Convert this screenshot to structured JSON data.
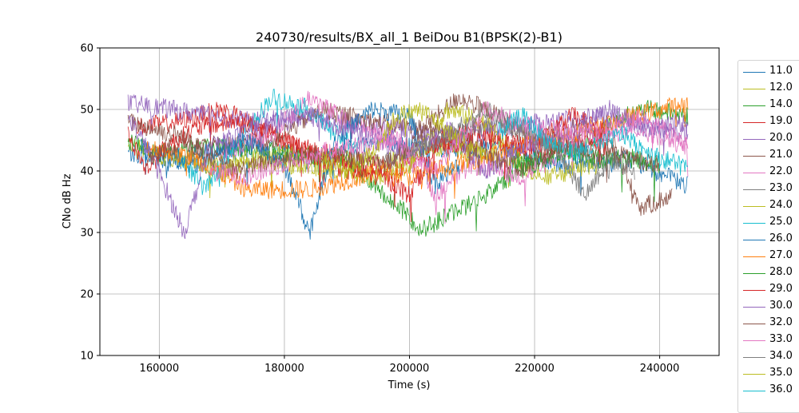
{
  "chart_data": {
    "type": "line",
    "title": "240730/results/BX_all_1 BeiDou B1(BPSK(2)-B1)",
    "xlabel": "Time (s)",
    "ylabel": "CNo dB Hz",
    "xlim": [
      150500,
      249500
    ],
    "ylim": [
      10,
      60
    ],
    "x_ticks": [
      160000,
      180000,
      200000,
      220000,
      240000
    ],
    "x_tick_labels": [
      "160000",
      "180000",
      "200000",
      "220000",
      "240000"
    ],
    "y_ticks": [
      10,
      20,
      30,
      40,
      50,
      60
    ],
    "y_tick_labels": [
      "10",
      "20",
      "30",
      "40",
      "50",
      "60"
    ],
    "grid": true,
    "legend_position": "outside-right",
    "series": [
      {
        "name": "11.0",
        "color": "#1f77b4",
        "points": [
          [
            155000,
            43
          ],
          [
            165000,
            41
          ],
          [
            175000,
            44
          ],
          [
            185000,
            42
          ],
          [
            195000,
            45
          ],
          [
            205000,
            43
          ],
          [
            215000,
            44
          ],
          [
            225000,
            41
          ],
          [
            235000,
            42
          ],
          [
            244500,
            37.5
          ]
        ]
      },
      {
        "name": "12.0",
        "color": "#bcbd22",
        "points": [
          [
            155000,
            44
          ],
          [
            162000,
            42
          ],
          [
            170000,
            40
          ],
          [
            180000,
            43
          ],
          [
            195000,
            41
          ],
          [
            205000,
            44
          ],
          [
            215000,
            42
          ],
          [
            222000,
            39
          ],
          [
            230000,
            41
          ]
        ]
      },
      {
        "name": "14.0",
        "color": "#2ca02c",
        "points": [
          [
            155000,
            45
          ],
          [
            160000,
            43
          ],
          [
            170000,
            44
          ],
          [
            190000,
            42
          ],
          [
            202000,
            30.5
          ],
          [
            212000,
            36
          ],
          [
            220000,
            42
          ],
          [
            228000,
            44
          ],
          [
            232000,
            48
          ],
          [
            238000,
            50
          ],
          [
            244500,
            49
          ]
        ]
      },
      {
        "name": "19.0",
        "color": "#d62728",
        "points": [
          [
            156000,
            47
          ],
          [
            163000,
            48
          ],
          [
            170000,
            50
          ],
          [
            176000,
            47
          ],
          [
            182000,
            44
          ],
          [
            190000,
            42
          ],
          [
            198000,
            40
          ],
          [
            205000,
            45
          ],
          [
            212000,
            47
          ],
          [
            218000,
            43
          ],
          [
            226000,
            45
          ],
          [
            232000,
            44
          ]
        ]
      },
      {
        "name": "20.0",
        "color": "#9467bd",
        "points": [
          [
            155000,
            51
          ],
          [
            162000,
            50
          ],
          [
            168000,
            49
          ],
          [
            175000,
            48
          ],
          [
            182000,
            49
          ],
          [
            190000,
            48
          ],
          [
            198000,
            47
          ],
          [
            206000,
            45
          ],
          [
            214000,
            47
          ],
          [
            222000,
            48
          ],
          [
            230000,
            49
          ],
          [
            238000,
            47
          ],
          [
            244500,
            46
          ]
        ]
      },
      {
        "name": "21.0",
        "color": "#8c564b",
        "points": [
          [
            155000,
            48
          ],
          [
            162000,
            46
          ],
          [
            170000,
            44
          ],
          [
            178000,
            45
          ],
          [
            186000,
            50
          ],
          [
            194000,
            48
          ],
          [
            202000,
            47
          ],
          [
            208000,
            52
          ],
          [
            214000,
            49
          ],
          [
            220000,
            45
          ],
          [
            226000,
            47
          ],
          [
            232000,
            46
          ],
          [
            237000,
            34
          ],
          [
            242000,
            36
          ]
        ]
      },
      {
        "name": "22.0",
        "color": "#e377c2",
        "points": [
          [
            170000,
            43
          ],
          [
            178000,
            46
          ],
          [
            184000,
            52
          ],
          [
            190000,
            48
          ],
          [
            198000,
            45
          ],
          [
            204000,
            36
          ],
          [
            210000,
            41
          ],
          [
            218000,
            39
          ],
          [
            228000,
            45
          ],
          [
            236000,
            47
          ],
          [
            244500,
            44
          ]
        ]
      },
      {
        "name": "23.0",
        "color": "#7f7f7f",
        "points": [
          [
            196000,
            42
          ],
          [
            202000,
            44
          ],
          [
            208000,
            46
          ],
          [
            214000,
            48
          ],
          [
            220000,
            45
          ],
          [
            226000,
            44
          ],
          [
            232000,
            40
          ]
        ]
      },
      {
        "name": "24.0",
        "color": "#bcbd22",
        "points": [
          [
            168000,
            41
          ],
          [
            176000,
            42
          ],
          [
            186000,
            40
          ],
          [
            194000,
            39
          ],
          [
            200000,
            41
          ],
          [
            206000,
            50
          ],
          [
            212000,
            48
          ],
          [
            218000,
            41
          ]
        ]
      },
      {
        "name": "25.0",
        "color": "#17becf",
        "points": [
          [
            163000,
            43
          ],
          [
            167000,
            37
          ],
          [
            172000,
            44
          ],
          [
            178000,
            52
          ],
          [
            184000,
            50
          ],
          [
            188000,
            46
          ],
          [
            192000,
            44
          ]
        ]
      },
      {
        "name": "26.0",
        "color": "#1f77b4",
        "points": [
          [
            157000,
            44
          ],
          [
            162000,
            42
          ],
          [
            168000,
            43
          ],
          [
            174000,
            45
          ],
          [
            180000,
            41
          ],
          [
            184000,
            30
          ],
          [
            188000,
            45
          ],
          [
            194000,
            50
          ],
          [
            200000,
            49
          ],
          [
            204000,
            38
          ],
          [
            208000,
            41
          ]
        ]
      },
      {
        "name": "27.0",
        "color": "#ff7f0e",
        "points": [
          [
            158000,
            44
          ],
          [
            166000,
            42
          ],
          [
            174000,
            37
          ],
          [
            184000,
            37
          ],
          [
            196000,
            40
          ],
          [
            200000,
            39
          ],
          [
            240000,
            50
          ],
          [
            244500,
            51
          ]
        ]
      },
      {
        "name": "28.0",
        "color": "#2ca02c",
        "points": [
          [
            216000,
            42
          ],
          [
            220000,
            41
          ],
          [
            224000,
            43
          ],
          [
            230000,
            42
          ],
          [
            236000,
            42
          ],
          [
            240000,
            41
          ]
        ]
      },
      {
        "name": "29.0",
        "color": "#d62728",
        "points": [
          [
            155000,
            46
          ],
          [
            158000,
            40
          ],
          [
            161000,
            44
          ],
          [
            166000,
            47
          ],
          [
            172000,
            48
          ],
          [
            178000,
            46
          ],
          [
            184000,
            43
          ],
          [
            190000,
            40
          ],
          [
            196000,
            39
          ],
          [
            200000,
            36
          ],
          [
            204000,
            44
          ],
          [
            212000,
            45
          ],
          [
            220000,
            44
          ],
          [
            226000,
            49
          ],
          [
            232000,
            46
          ]
        ]
      },
      {
        "name": "30.0",
        "color": "#9467bd",
        "points": [
          [
            155000,
            49
          ],
          [
            159000,
            42
          ],
          [
            164000,
            30
          ],
          [
            168000,
            44
          ],
          [
            176000,
            47
          ],
          [
            184000,
            49
          ],
          [
            192000,
            46
          ],
          [
            200000,
            43
          ],
          [
            206000,
            47
          ],
          [
            212000,
            40
          ],
          [
            218000,
            44
          ],
          [
            226000,
            46
          ],
          [
            232000,
            50
          ],
          [
            238000,
            47
          ],
          [
            244500,
            48
          ]
        ]
      },
      {
        "name": "32.0",
        "color": "#8c564b",
        "points": [
          [
            158000,
            42
          ],
          [
            164000,
            45
          ],
          [
            172000,
            40
          ],
          [
            180000,
            42
          ],
          [
            188000,
            43
          ],
          [
            196000,
            41
          ],
          [
            204000,
            47
          ],
          [
            212000,
            43
          ],
          [
            218000,
            40
          ],
          [
            224000,
            44
          ],
          [
            232000,
            43
          ],
          [
            240000,
            41
          ]
        ]
      },
      {
        "name": "33.0",
        "color": "#e377c2",
        "points": [
          [
            168000,
            40
          ],
          [
            174000,
            39
          ],
          [
            182000,
            42
          ],
          [
            190000,
            44
          ],
          [
            198000,
            45
          ],
          [
            204000,
            40
          ],
          [
            212000,
            50
          ],
          [
            220000,
            47
          ],
          [
            230000,
            46
          ],
          [
            238000,
            49
          ],
          [
            244500,
            44
          ]
        ]
      },
      {
        "name": "34.0",
        "color": "#7f7f7f",
        "points": [
          [
            200000,
            43
          ],
          [
            206000,
            46
          ],
          [
            212000,
            50
          ],
          [
            218000,
            47
          ],
          [
            224000,
            43
          ],
          [
            228000,
            36
          ],
          [
            232000,
            42
          ],
          [
            236000,
            40
          ]
        ]
      },
      {
        "name": "35.0",
        "color": "#bcbd22",
        "points": [
          [
            186000,
            42
          ],
          [
            190000,
            40
          ],
          [
            194000,
            43
          ],
          [
            198000,
            49
          ],
          [
            202000,
            50
          ],
          [
            208000,
            45
          ],
          [
            212000,
            43
          ]
        ]
      },
      {
        "name": "36.0",
        "color": "#17becf",
        "points": [
          [
            214000,
            46
          ],
          [
            218000,
            49
          ],
          [
            222000,
            45
          ],
          [
            226000,
            43
          ],
          [
            230000,
            44
          ],
          [
            234000,
            46
          ],
          [
            240000,
            42
          ],
          [
            244500,
            41
          ]
        ]
      }
    ]
  }
}
